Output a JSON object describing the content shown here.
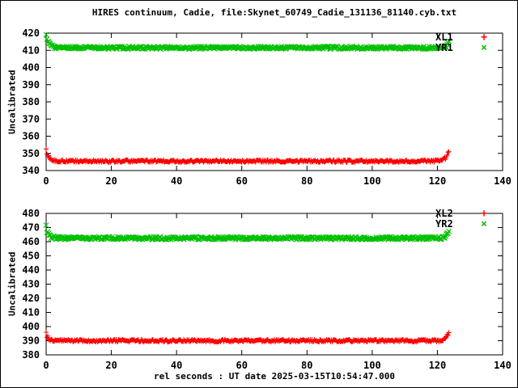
{
  "title": "HIRES continuum, Cadie, file:Skynet_60749_Cadie_131136_81140.cyb.txt",
  "xlabel": "rel seconds : UT date 2025-03-15T10:54:47.000",
  "colors": {
    "background": "#ffffff",
    "frame": "#000000",
    "red": "#ff0000",
    "green": "#00c000"
  },
  "chart_data": [
    {
      "type": "scatter",
      "ylabel": "Uncalibrated",
      "xlim": [
        0,
        140
      ],
      "ylim": [
        340,
        420
      ],
      "xtick_step": 20,
      "ytick_step": 10,
      "grid": false,
      "legend_position": "top-right-inside",
      "series": [
        {
          "name": "XL1",
          "marker": "+",
          "color": "#ff0000",
          "x_range": [
            0,
            123.5
          ],
          "step": 0.25,
          "baseline": 345.5,
          "noise": 0.7,
          "start_value": 351.5,
          "end_value": 352.5,
          "edge_decay": 0.8
        },
        {
          "name": "YR1",
          "marker": "x",
          "color": "#00c000",
          "x_range": [
            0,
            123.5
          ],
          "step": 0.25,
          "baseline": 411.5,
          "noise": 0.8,
          "start_value": 418.5,
          "end_value": 414.0,
          "edge_decay": 0.8
        }
      ]
    },
    {
      "type": "scatter",
      "ylabel": "Uncalibrated",
      "xlim": [
        0,
        140
      ],
      "ylim": [
        380,
        480
      ],
      "xtick_step": 20,
      "ytick_step": 10,
      "grid": false,
      "legend_position": "top-right-inside",
      "series": [
        {
          "name": "XL2",
          "marker": "+",
          "color": "#ff0000",
          "x_range": [
            0,
            123.5
          ],
          "step": 0.25,
          "baseline": 390.0,
          "noise": 0.9,
          "start_value": 395.5,
          "end_value": 397.0,
          "edge_decay": 0.8
        },
        {
          "name": "YR2",
          "marker": "x",
          "color": "#00c000",
          "x_range": [
            0,
            123.5
          ],
          "step": 0.25,
          "baseline": 462.5,
          "noise": 1.0,
          "start_value": 470.0,
          "end_value": 467.5,
          "edge_decay": 0.8
        }
      ]
    }
  ]
}
